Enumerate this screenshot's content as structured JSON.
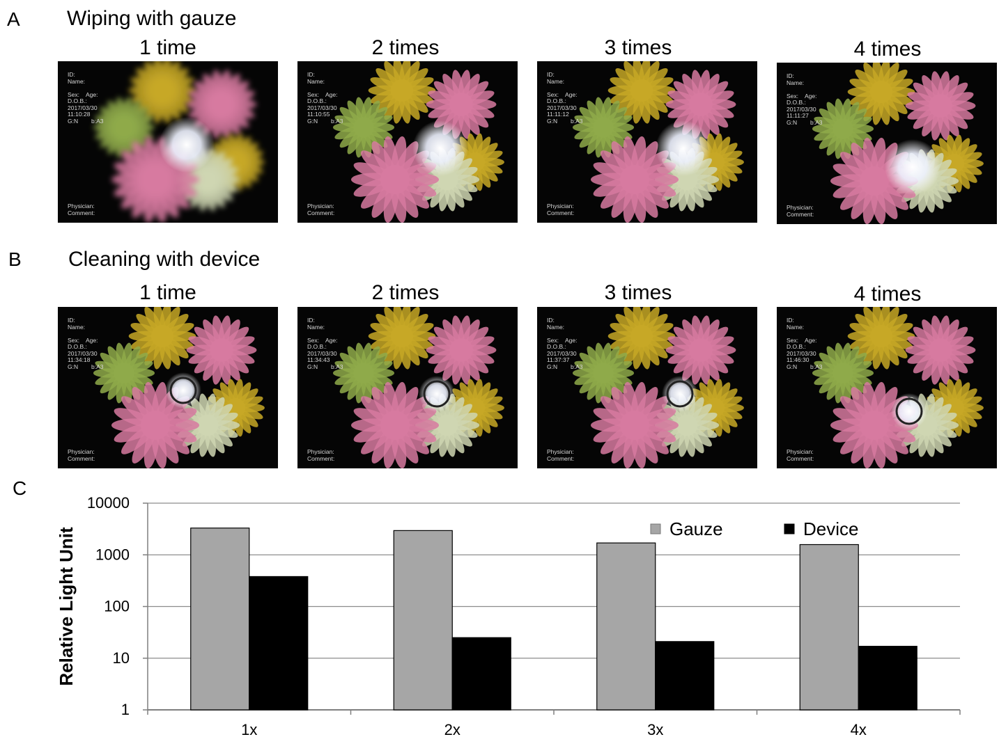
{
  "panels": [
    {
      "letter": "A",
      "title": "Wiping with gauze",
      "frames": [
        {
          "label": "1 time",
          "overlay": [
            "ID:",
            "Name:",
            "",
            "Sex:    Age:",
            "D.O.B.:",
            "2017/03/30",
            "11:10:28",
            "G:N        b:A3"
          ],
          "footer": [
            "Physician:",
            "Comment:"
          ]
        },
        {
          "label": "2 times",
          "overlay": [
            "ID:",
            "Name:",
            "",
            "Sex:    Age:",
            "D.O.B.:",
            "2017/03/30",
            "11:10:55",
            "G:N        b:A3"
          ],
          "footer": [
            "Physician:",
            "Comment:"
          ]
        },
        {
          "label": "3 times",
          "overlay": [
            "ID:",
            "Name:",
            "",
            "Sex:    Age:",
            "D.O.B.:",
            "2017/03/30",
            "11:11:12",
            "G:N        b:A3"
          ],
          "footer": [
            "Physician:",
            "Comment:"
          ]
        },
        {
          "label": "4 times",
          "overlay": [
            "ID:",
            "Name:",
            "",
            "Sex:    Age:",
            "D.O.B.:",
            "2017/03/30",
            "11:11:27",
            "G:N        b:A3"
          ],
          "footer": [
            "Physician:",
            "Comment:"
          ]
        }
      ]
    },
    {
      "letter": "B",
      "title": "Cleaning with device",
      "frames": [
        {
          "label": "1 time",
          "overlay": [
            "ID:",
            "Name:",
            "",
            "Sex:    Age:",
            "D.O.B.:",
            "2017/03/30",
            "11:34:18",
            "G:N        b:A3"
          ],
          "footer": [
            "Physician:",
            "Comment:"
          ]
        },
        {
          "label": "2 times",
          "overlay": [
            "ID:",
            "Name:",
            "",
            "Sex:    Age:",
            "D.O.B.:",
            "2017/03/30",
            "11:34:43",
            "G:N        b:A3"
          ],
          "footer": [
            "Physician:",
            "Comment:"
          ]
        },
        {
          "label": "3 times",
          "overlay": [
            "ID:",
            "Name:",
            "",
            "Sex:    Age:",
            "D.O.B.:",
            "2017/03/30",
            "11:37:37",
            "G:N        b:A3"
          ],
          "footer": [
            "Physician:",
            "Comment:"
          ]
        },
        {
          "label": "4 times",
          "overlay": [
            "ID:",
            "Name:",
            "",
            "Sex:    Age:",
            "D.O.B.:",
            "2017/03/30",
            "11:46:30",
            "G:N        b:A3"
          ],
          "footer": [
            "Physician:",
            "Comment:"
          ]
        }
      ]
    }
  ],
  "chart_letter": "C",
  "chart_data": {
    "type": "bar",
    "title": "",
    "xlabel": "",
    "ylabel": "Relative Light Unit",
    "yscale": "log",
    "ylim": [
      1,
      10000
    ],
    "yticks": [
      "1",
      "10",
      "100",
      "1000",
      "10000"
    ],
    "categories": [
      "1x",
      "2x",
      "3x",
      "4x"
    ],
    "series": [
      {
        "name": "Gauze",
        "color": "#a6a6a6",
        "values": [
          3300,
          2950,
          1700,
          1580
        ]
      },
      {
        "name": "Device",
        "color": "#000000",
        "values": [
          380,
          25,
          21,
          17
        ]
      }
    ],
    "grid": true,
    "legend": "top-right"
  },
  "colors": {
    "gauze": "#a6a6a6",
    "device": "#000000",
    "frame_bg": "#050505"
  }
}
